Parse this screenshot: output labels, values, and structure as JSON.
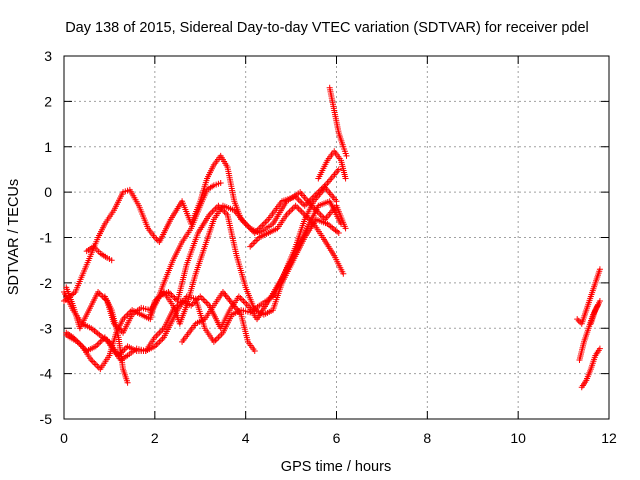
{
  "chart_data": {
    "type": "scatter",
    "title": "Day 138 of 2015, Sidereal Day-to-day VTEC variation (SDTVAR) for receiver pdel",
    "xlabel": "GPS time / hours",
    "ylabel": "SDTVAR / TECUs",
    "xlim": [
      0,
      12
    ],
    "ylim": [
      -5,
      3
    ],
    "xticks": [
      0,
      2,
      4,
      6,
      8,
      10,
      12
    ],
    "yticks": [
      -5,
      -4,
      -3,
      -2,
      -1,
      0,
      1,
      2,
      3
    ],
    "xtick_labels": [
      "0",
      "2",
      "4",
      "6",
      "8",
      "10",
      "12"
    ],
    "ytick_labels": [
      "-5",
      "-4",
      "-3",
      "-2",
      "-1",
      "0",
      "1",
      "2",
      "3"
    ],
    "grid": true,
    "legend": "none",
    "marker": "plus",
    "series_color": "#ff0000",
    "series": [
      {
        "x": [
          0.0,
          0.25,
          0.5,
          0.75,
          0.9,
          1.1,
          1.3,
          1.45,
          1.65,
          1.85,
          2.0,
          2.1,
          2.35,
          2.6,
          2.8,
          3.0,
          3.15,
          3.3,
          3.45,
          3.6,
          3.75,
          3.9,
          4.1,
          4.3,
          4.6,
          4.9,
          5.2,
          5.45,
          5.75,
          6.0,
          6.2
        ],
        "y": [
          -2.4,
          -2.2,
          -1.6,
          -1.0,
          -0.7,
          -0.4,
          0.0,
          0.05,
          -0.3,
          -0.8,
          -1.0,
          -1.1,
          -0.6,
          -0.2,
          -0.7,
          -0.2,
          0.3,
          0.6,
          0.8,
          0.55,
          -0.2,
          -0.6,
          -0.8,
          -0.9,
          -0.7,
          -0.2,
          0.0,
          -0.3,
          -0.6,
          -0.3,
          -0.8
        ]
      },
      {
        "x": [
          0.05,
          0.2,
          0.4,
          0.6,
          0.8,
          1.0,
          1.15,
          1.3,
          1.5,
          1.7,
          1.9,
          2.0,
          2.2,
          2.4,
          2.55,
          2.7,
          2.9,
          3.1,
          3.3,
          3.5,
          3.75,
          4.0,
          4.2,
          4.5,
          4.8,
          5.1,
          5.3,
          5.5,
          5.8,
          6.05
        ],
        "y": [
          -3.1,
          -3.2,
          -3.4,
          -3.7,
          -3.9,
          -3.6,
          -3.1,
          -2.8,
          -2.6,
          -2.7,
          -2.8,
          -2.4,
          -2.2,
          -2.5,
          -2.9,
          -2.5,
          -1.8,
          -1.2,
          -0.6,
          -0.3,
          -0.4,
          -0.7,
          -0.9,
          -0.6,
          -0.2,
          -0.1,
          -0.3,
          -0.1,
          0.2,
          0.5
        ]
      },
      {
        "x": [
          0.0,
          0.2,
          0.4,
          0.6,
          0.85,
          1.0,
          1.2,
          1.4,
          1.6,
          1.8,
          2.0,
          2.2,
          2.4,
          2.6,
          2.8,
          3.0,
          3.2,
          3.45,
          3.65,
          3.85,
          4.05,
          4.25,
          4.5,
          4.8,
          5.1,
          5.35,
          5.6,
          5.85,
          6.1
        ],
        "y": [
          -2.2,
          -2.6,
          -2.9,
          -3.0,
          -3.2,
          -3.3,
          -3.6,
          -3.4,
          -3.5,
          -3.5,
          -3.2,
          -3.0,
          -2.6,
          -2.4,
          -2.5,
          -2.3,
          -2.5,
          -3.0,
          -2.6,
          -2.3,
          -2.5,
          -2.8,
          -2.4,
          -1.9,
          -1.3,
          -0.8,
          -0.3,
          -0.2,
          -0.7
        ]
      },
      {
        "x": [
          0.05,
          0.3,
          0.5,
          0.7,
          0.9,
          1.1,
          1.25,
          1.4,
          1.6,
          1.8,
          2.0,
          2.2,
          2.5,
          2.7,
          2.9,
          3.1,
          3.3,
          3.5,
          3.7,
          3.9,
          4.1,
          4.3,
          4.6,
          4.85,
          5.1,
          5.3,
          5.5,
          5.75,
          6.0
        ],
        "y": [
          -3.15,
          -3.3,
          -3.5,
          -3.4,
          -3.2,
          -3.5,
          -3.7,
          -3.6,
          -3.45,
          -3.5,
          -3.4,
          -3.2,
          -2.6,
          -2.3,
          -2.35,
          -3.0,
          -3.3,
          -3.1,
          -2.7,
          -2.6,
          -2.65,
          -2.5,
          -2.3,
          -1.8,
          -1.2,
          -0.6,
          -0.2,
          0.1,
          -0.2
        ]
      },
      {
        "x": [
          0.05,
          0.2,
          0.35,
          0.55,
          0.75,
          0.95,
          1.1,
          1.3,
          1.5,
          1.7,
          1.9,
          2.1,
          2.3,
          2.5,
          2.7,
          2.95,
          3.2,
          3.4,
          3.6,
          3.8,
          4.0,
          4.2,
          4.4,
          4.6,
          4.8,
          5.05,
          5.3,
          5.55,
          5.8,
          6.05
        ],
        "y": [
          -2.1,
          -2.5,
          -3.0,
          -2.6,
          -2.2,
          -2.4,
          -2.9,
          -3.1,
          -2.7,
          -2.55,
          -2.6,
          -2.3,
          -2.2,
          -2.4,
          -1.6,
          -0.9,
          -0.5,
          -0.3,
          -0.5,
          -1.4,
          -2.1,
          -2.6,
          -2.7,
          -2.6,
          -2.0,
          -1.5,
          -1.0,
          -0.6,
          -0.7,
          -0.9
        ]
      },
      {
        "x": [
          0.5,
          0.65,
          0.8,
          0.95,
          1.05
        ],
        "y": [
          -1.3,
          -1.2,
          -1.35,
          -1.45,
          -1.5
        ]
      },
      {
        "x": [
          0.9,
          1.05,
          1.2,
          1.3,
          1.4
        ],
        "y": [
          -2.3,
          -2.6,
          -3.2,
          -3.9,
          -4.2
        ]
      },
      {
        "x": [
          1.9,
          2.05,
          2.2,
          2.4,
          2.6,
          2.8,
          3.0,
          3.15,
          3.3,
          3.45
        ],
        "y": [
          -2.7,
          -2.4,
          -2.0,
          -1.5,
          -1.1,
          -0.8,
          -0.3,
          0.05,
          0.15,
          0.2
        ]
      },
      {
        "x": [
          2.6,
          2.75,
          2.9,
          3.1,
          3.3,
          3.5,
          3.7,
          3.9,
          4.05,
          4.2
        ],
        "y": [
          -3.3,
          -3.1,
          -2.9,
          -2.8,
          -2.5,
          -2.2,
          -2.45,
          -2.7,
          -3.3,
          -3.5
        ]
      },
      {
        "x": [
          4.1,
          4.3,
          4.5,
          4.7,
          4.9,
          5.1,
          5.3,
          5.5,
          5.7,
          5.95,
          6.15
        ],
        "y": [
          -1.2,
          -1.0,
          -0.9,
          -0.8,
          -0.5,
          -0.3,
          -0.5,
          -0.7,
          -1.0,
          -1.4,
          -1.8
        ]
      },
      {
        "x": [
          5.85,
          5.95,
          6.05,
          6.15,
          6.22
        ],
        "y": [
          2.3,
          1.8,
          1.3,
          1.0,
          0.8
        ]
      },
      {
        "x": [
          5.6,
          5.8,
          5.95,
          6.1,
          6.2
        ],
        "y": [
          0.3,
          0.7,
          0.9,
          0.7,
          0.3
        ]
      },
      {
        "x": [
          11.3,
          11.4,
          11.5,
          11.6,
          11.7,
          11.8
        ],
        "y": [
          -2.8,
          -2.9,
          -2.6,
          -2.3,
          -2.0,
          -1.7
        ]
      },
      {
        "x": [
          11.35,
          11.45,
          11.55,
          11.65,
          11.75
        ],
        "y": [
          -3.7,
          -3.3,
          -3.0,
          -2.7,
          -2.5
        ]
      },
      {
        "x": [
          11.4,
          11.5,
          11.6,
          11.7,
          11.8
        ],
        "y": [
          -4.3,
          -4.15,
          -3.9,
          -3.6,
          -3.45
        ]
      },
      {
        "x": [
          11.6,
          11.7,
          11.8
        ],
        "y": [
          -2.9,
          -2.6,
          -2.4
        ]
      }
    ]
  }
}
